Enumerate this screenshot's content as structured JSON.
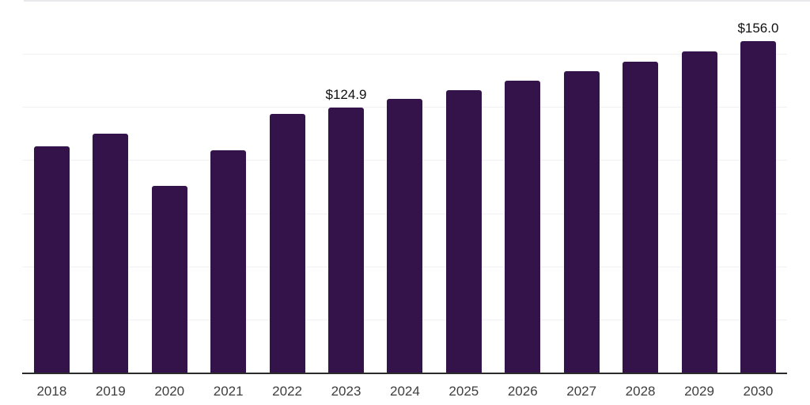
{
  "chart_data": {
    "type": "bar",
    "title": "",
    "xlabel": "",
    "ylabel": "",
    "categories": [
      "2018",
      "2019",
      "2020",
      "2021",
      "2022",
      "2023",
      "2024",
      "2025",
      "2026",
      "2027",
      "2028",
      "2029",
      "2030"
    ],
    "values": [
      106.6,
      112.3,
      87.7,
      104.8,
      121.6,
      124.9,
      128.9,
      133.1,
      137.4,
      141.8,
      146.4,
      151.1,
      156.0
    ],
    "data_labels": {
      "2023": "$124.9",
      "2030": "$156.0"
    },
    "ylim": [
      0,
      175
    ],
    "gridline_interval": 25,
    "grid": true,
    "legend": false,
    "colors": {
      "bar": "#34124A",
      "axis_line": "#2b2b2b",
      "gridline": "#f1f1f3",
      "top_border": "#e9e9ec",
      "tick_label": "#3e3e3e",
      "data_label": "#101010",
      "background": "#ffffff"
    }
  }
}
